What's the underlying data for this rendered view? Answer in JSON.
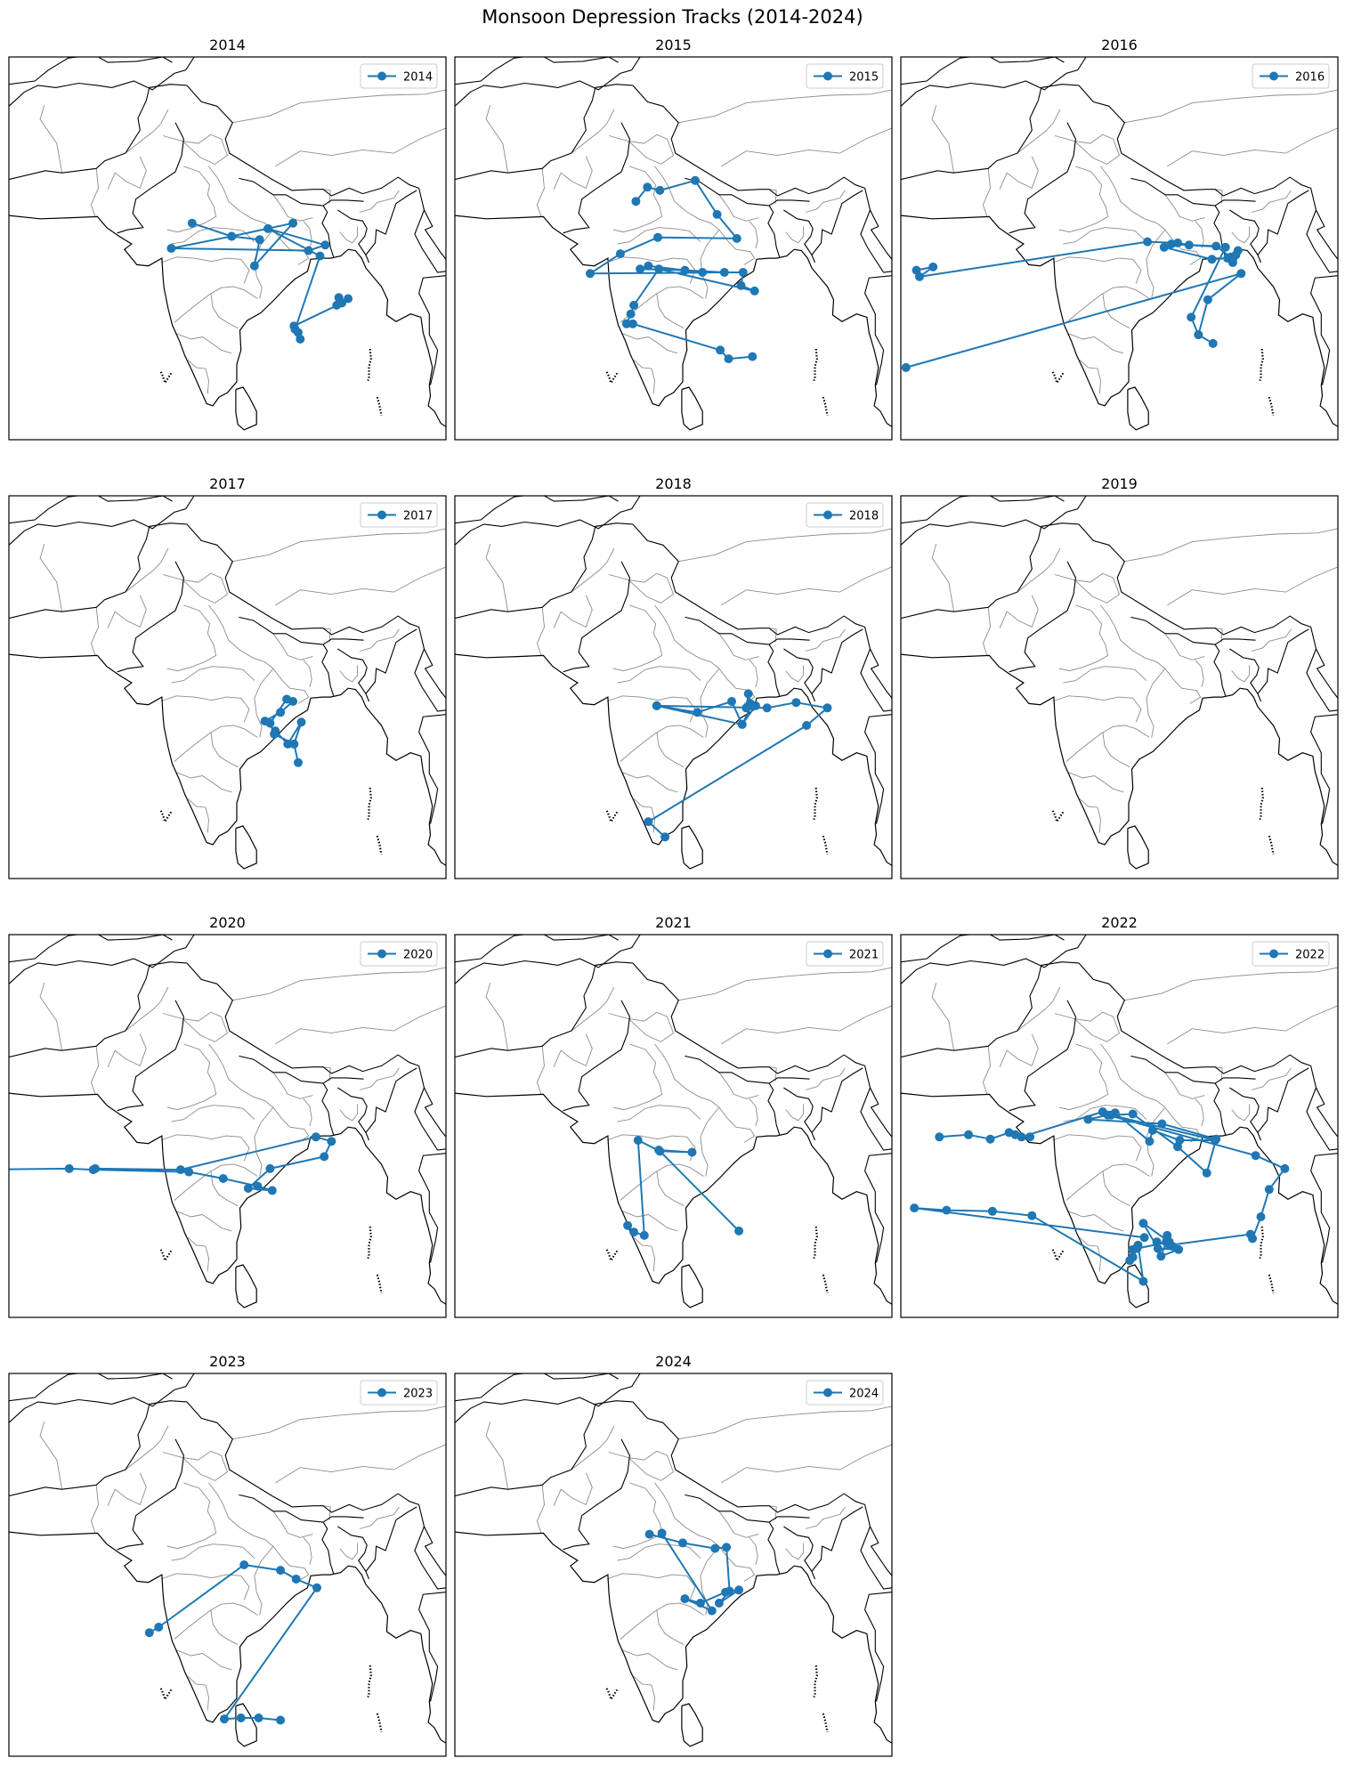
{
  "figure": {
    "suptitle": "Monsoon Depression Tracks (2014-2024)"
  },
  "colors": {
    "track": "#1f77b4",
    "coast": "#000000",
    "admin": "#8c8c8c",
    "frame": "#000000"
  },
  "chart_data": [
    {
      "type": "line",
      "title": "2014",
      "legend": [
        "2014"
      ],
      "legend_position": "upper right",
      "series": [
        {
          "name": "2014",
          "points": [
            [
              75.6,
              24.8
            ],
            [
              79.4,
              23.6
            ],
            [
              85.3,
              24.8
            ],
            [
              81.6,
              20.9
            ],
            [
              82.1,
              23.3
            ],
            [
              79.4,
              23.6
            ],
            [
              73.6,
              22.5
            ],
            [
              86.8,
              22.3
            ],
            [
              88.4,
              22.8
            ],
            [
              82.9,
              24.3
            ],
            [
              87.9,
              21.8
            ],
            [
              85.5,
              15.1
            ],
            [
              85.8,
              14.8
            ],
            [
              86.0,
              14.2
            ],
            [
              85.4,
              15.4
            ],
            [
              90.0,
              17.5
            ],
            [
              90.6,
              17.9
            ],
            [
              89.5,
              17.3
            ],
            [
              89.7,
              18.0
            ]
          ]
        }
      ]
    },
    {
      "type": "line",
      "title": "2015",
      "legend": [
        "2015"
      ],
      "legend_position": "upper right",
      "series": [
        {
          "name": "2015",
          "points": [
            [
              75.4,
              26.8
            ],
            [
              76.5,
              28.1
            ],
            [
              77.7,
              27.8
            ],
            [
              81.1,
              28.7
            ],
            [
              83.2,
              25.6
            ],
            [
              85.1,
              23.4
            ],
            [
              77.5,
              23.5
            ],
            [
              73.9,
              22.0
            ],
            [
              71.0,
              20.2
            ],
            [
              83.9,
              20.3
            ],
            [
              80.1,
              20.5
            ],
            [
              75.8,
              20.6
            ],
            [
              76.6,
              20.9
            ],
            [
              81.8,
              20.3
            ],
            [
              85.7,
              20.3
            ],
            [
              85.5,
              19.1
            ],
            [
              86.8,
              18.6
            ],
            [
              77.6,
              20.6
            ],
            [
              75.2,
              17.3
            ],
            [
              74.9,
              16.5
            ],
            [
              74.5,
              15.6
            ],
            [
              75.1,
              15.6
            ],
            [
              83.5,
              13.2
            ],
            [
              84.3,
              12.4
            ],
            [
              86.6,
              12.6
            ]
          ]
        }
      ]
    },
    {
      "type": "line",
      "title": "2016",
      "legend": [
        "2016"
      ],
      "legend_position": "upper right",
      "series": [
        {
          "name": "2016",
          "points": [
            [
              59.5,
              20.5
            ],
            [
              61.1,
              20.8
            ],
            [
              59.8,
              19.9
            ],
            [
              81.7,
              23.1
            ],
            [
              84.6,
              23.0
            ],
            [
              85.7,
              22.8
            ],
            [
              88.3,
              22.7
            ],
            [
              89.7,
              21.7
            ],
            [
              89.9,
              21.2
            ],
            [
              90.2,
              21.9
            ],
            [
              89.9,
              21.5
            ],
            [
              90.4,
              22.3
            ],
            [
              89.4,
              21.6
            ],
            [
              87.9,
              21.5
            ],
            [
              83.3,
              22.6
            ],
            [
              84.0,
              22.9
            ],
            [
              89.2,
              22.6
            ],
            [
              85.9,
              16.2
            ],
            [
              86.6,
              14.6
            ],
            [
              88.0,
              13.8
            ],
            [
              86.6,
              14.6
            ],
            [
              87.5,
              17.8
            ],
            [
              90.7,
              20.2
            ],
            [
              58.5,
              11.6
            ]
          ]
        }
      ]
    },
    {
      "type": "line",
      "title": "2017",
      "legend": [
        "2017"
      ],
      "legend_position": "upper right",
      "series": [
        {
          "name": "2017",
          "points": [
            [
              85.3,
              21.2
            ],
            [
              84.1,
              20.2
            ],
            [
              82.6,
              19.4
            ],
            [
              83.6,
              18.5
            ],
            [
              84.8,
              17.3
            ],
            [
              86.1,
              19.3
            ],
            [
              85.4,
              17.3
            ],
            [
              85.8,
              15.6
            ],
            [
              85.4,
              17.3
            ],
            [
              83.5,
              18.2
            ],
            [
              83.1,
              19.2
            ],
            [
              84.7,
              21.4
            ]
          ]
        }
      ]
    },
    {
      "type": "line",
      "title": "2018",
      "legend": [
        "2018"
      ],
      "legend_position": "upper right",
      "series": [
        {
          "name": "2018",
          "points": [
            [
              77.4,
              20.8
            ],
            [
              81.3,
              20.2
            ],
            [
              84.6,
              21.2
            ],
            [
              85.6,
              19.1
            ],
            [
              86.5,
              20.8
            ],
            [
              86.0,
              20.6
            ],
            [
              86.2,
              21.9
            ],
            [
              86.4,
              21.0
            ],
            [
              86.9,
              20.8
            ],
            [
              85.6,
              19.1
            ],
            [
              77.4,
              20.8
            ],
            [
              88.0,
              20.6
            ],
            [
              90.8,
              21.1
            ],
            [
              93.8,
              20.6
            ],
            [
              91.8,
              19.0
            ],
            [
              76.6,
              10.2
            ],
            [
              78.2,
              8.8
            ]
          ]
        }
      ]
    },
    {
      "type": "line",
      "title": "2019",
      "series": []
    },
    {
      "type": "line",
      "title": "2020",
      "legend": [
        "2020"
      ],
      "legend_position": "upper right",
      "series": [
        {
          "name": "2020",
          "points": [
            [
              54.0,
              18.5
            ],
            [
              63.8,
              18.6
            ],
            [
              66.1,
              18.5
            ],
            [
              75.3,
              18.3
            ],
            [
              78.6,
              17.7
            ],
            [
              81.9,
              17.0
            ],
            [
              83.3,
              16.6
            ],
            [
              81.0,
              16.8
            ],
            [
              83.1,
              18.6
            ],
            [
              88.3,
              19.7
            ],
            [
              89.0,
              21.1
            ],
            [
              87.5,
              21.5
            ],
            [
              74.5,
              18.5
            ],
            [
              66.3,
              18.6
            ]
          ]
        }
      ]
    },
    {
      "type": "line",
      "title": "2021",
      "legend": [
        "2021"
      ],
      "legend_position": "upper right",
      "series": [
        {
          "name": "2021",
          "points": [
            [
              74.6,
              13.4
            ],
            [
              75.2,
              12.8
            ],
            [
              76.2,
              12.5
            ],
            [
              75.6,
              21.2
            ],
            [
              77.7,
              20.2
            ],
            [
              80.8,
              20.1
            ],
            [
              77.6,
              20.3
            ],
            [
              85.3,
              12.9
            ]
          ]
        }
      ]
    },
    {
      "type": "line",
      "title": "2022",
      "legend": [
        "2022"
      ],
      "legend_position": "upper right",
      "series": [
        {
          "name": "2022",
          "points": [
            [
              61.7,
              21.5
            ],
            [
              64.5,
              21.7
            ],
            [
              66.6,
              21.3
            ],
            [
              68.4,
              21.9
            ],
            [
              70.4,
              21.5
            ],
            [
              69.0,
              21.7
            ],
            [
              69.6,
              21.5
            ],
            [
              77.4,
              23.8
            ],
            [
              78.6,
              23.7
            ],
            [
              81.9,
              21.1
            ],
            [
              82.2,
              22.1
            ],
            [
              84.8,
              21.2
            ],
            [
              88.2,
              21.2
            ],
            [
              78.2,
              23.5
            ],
            [
              80.3,
              23.6
            ],
            [
              84.6,
              20.6
            ],
            [
              87.4,
              18.2
            ],
            [
              88.3,
              21.3
            ],
            [
              83.1,
              22.7
            ],
            [
              76.0,
              23.1
            ],
            [
              77.9,
              23.5
            ],
            [
              92.1,
              19.8
            ],
            [
              94.9,
              18.6
            ],
            [
              93.4,
              16.7
            ],
            [
              92.6,
              14.2
            ],
            [
              91.8,
              12.2
            ],
            [
              91.6,
              12.6
            ],
            [
              83.8,
              11.6
            ],
            [
              82.6,
              11.9
            ],
            [
              84.1,
              11.5
            ],
            [
              83.6,
              12.5
            ],
            [
              83.5,
              11.9
            ],
            [
              83.0,
              10.6
            ],
            [
              84.7,
              11.2
            ],
            [
              82.7,
              11.3
            ],
            [
              81.3,
              13.6
            ],
            [
              83.8,
              11.9
            ],
            [
              80.7,
              11.3
            ],
            [
              80.3,
              10.5
            ],
            [
              80.0,
              10.2
            ],
            [
              80.3,
              11.2
            ],
            [
              80.8,
              11.6
            ],
            [
              81.3,
              8.3
            ],
            [
              70.6,
              14.3
            ],
            [
              66.8,
              14.7
            ],
            [
              62.4,
              14.8
            ],
            [
              59.3,
              15.0
            ],
            [
              81.4,
              12.3
            ]
          ]
        }
      ]
    },
    {
      "type": "line",
      "title": "2023",
      "legend": [
        "2023"
      ],
      "legend_position": "upper right",
      "series": [
        {
          "name": "2023",
          "points": [
            [
              71.5,
              16.3
            ],
            [
              72.4,
              16.8
            ],
            [
              80.6,
              22.5
            ],
            [
              84.1,
              22.0
            ],
            [
              85.6,
              21.2
            ],
            [
              87.6,
              20.4
            ],
            [
              78.7,
              8.4
            ],
            [
              80.3,
              8.5
            ],
            [
              82.0,
              8.5
            ],
            [
              84.1,
              8.3
            ]
          ]
        }
      ]
    },
    {
      "type": "line",
      "title": "2024",
      "legend": [
        "2024"
      ],
      "legend_position": "upper right",
      "series": [
        {
          "name": "2024",
          "points": [
            [
              76.7,
              25.3
            ],
            [
              79.9,
              24.5
            ],
            [
              83.0,
              24.0
            ],
            [
              84.1,
              24.1
            ],
            [
              84.4,
              20.1
            ],
            [
              83.4,
              19.0
            ],
            [
              85.3,
              20.2
            ],
            [
              84.0,
              20.0
            ],
            [
              81.6,
              19.0
            ],
            [
              80.1,
              19.4
            ],
            [
              82.7,
              18.3
            ],
            [
              77.9,
              25.4
            ]
          ]
        }
      ]
    }
  ]
}
